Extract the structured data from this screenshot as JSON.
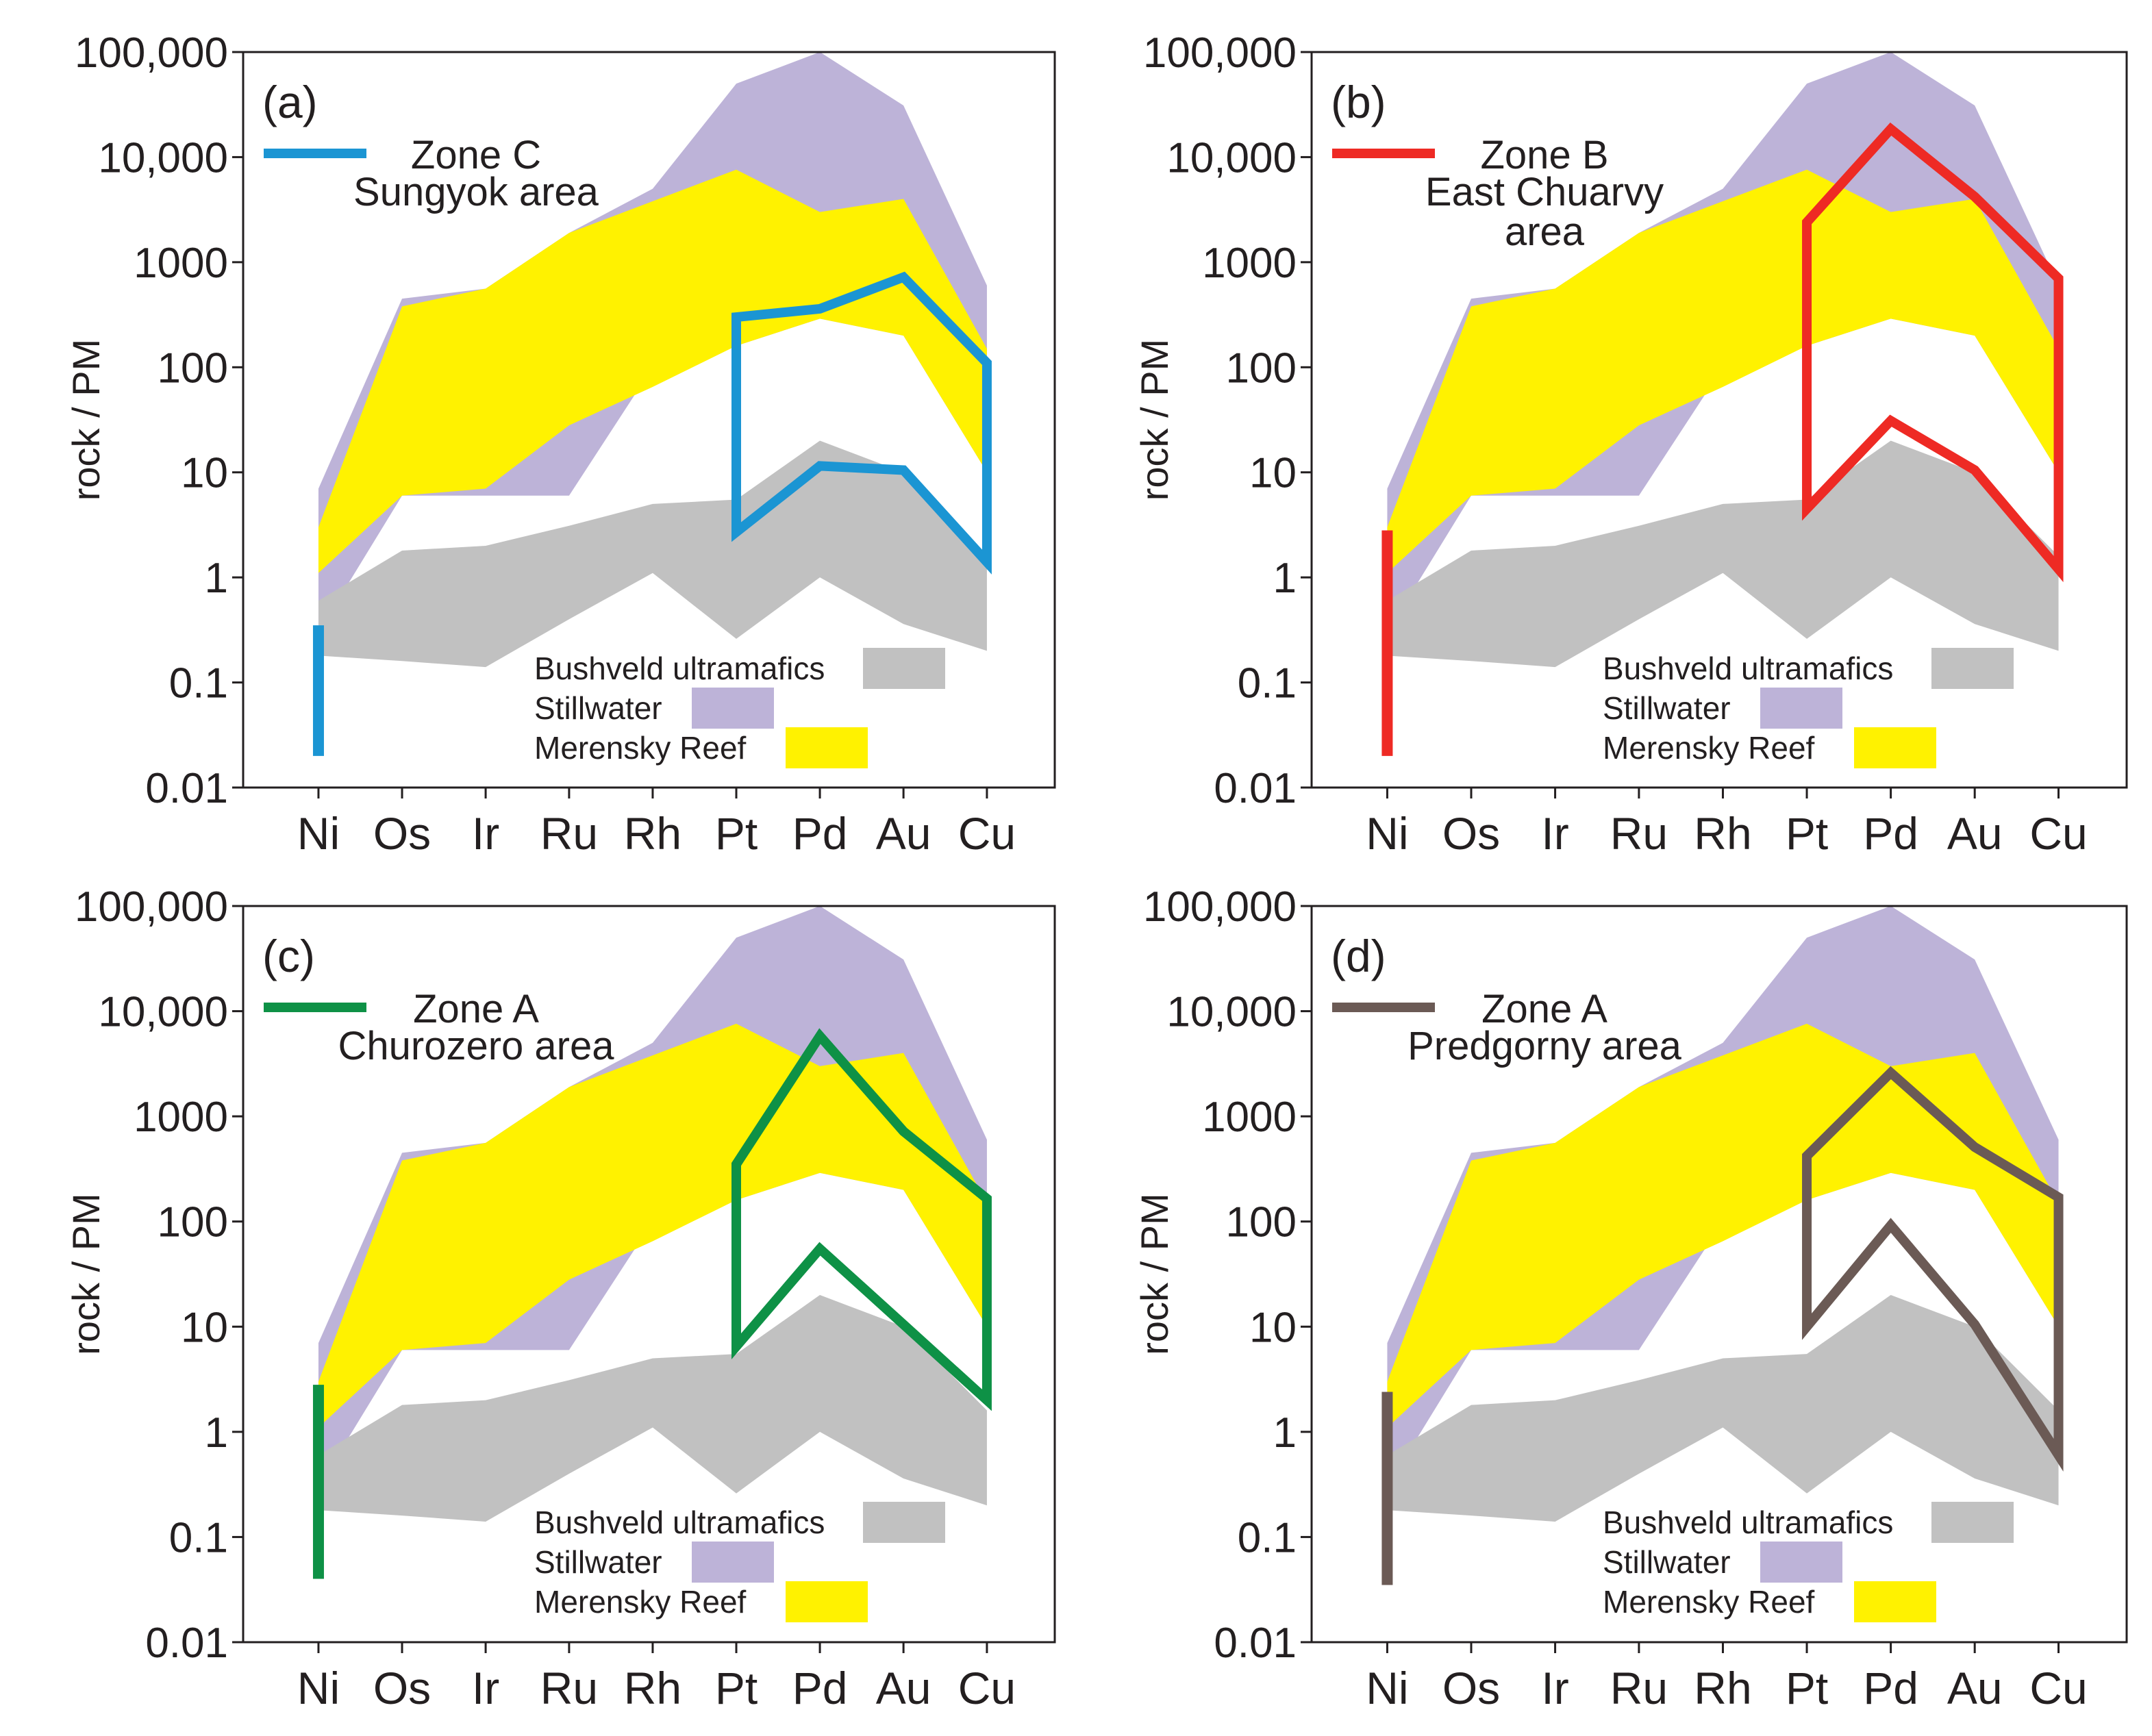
{
  "chart_data": [
    {
      "type": "line",
      "panel_label": "(a)",
      "title": "",
      "xlabel": "",
      "ylabel": "rock / PM",
      "yscale": "log",
      "ylim": [
        0.01,
        100000
      ],
      "yticks": [
        0.01,
        0.1,
        1,
        10,
        100,
        1000,
        10000,
        100000
      ],
      "ytick_labels": [
        "0.01",
        "0.1",
        "1",
        "10",
        "100",
        "1000",
        "10,000",
        "100,000"
      ],
      "categories": [
        "Ni",
        "Os",
        "Ir",
        "Ru",
        "Rh",
        "Pt",
        "Pd",
        "Au",
        "Cu"
      ],
      "zone": {
        "name": "Zone C",
        "area": "Sungyok area",
        "color": "#1b95d3",
        "ni_range": [
          0.02,
          0.35
        ],
        "upper": {
          "Pt": 300,
          "Pd": 360,
          "Au": 720,
          "Cu": 110
        },
        "lower": {
          "Pt": 2.7,
          "Pd": 11.5,
          "Au": 10.5,
          "Cu": 1.4
        }
      },
      "bands_legend": [
        "Bushveld ultramafics",
        "Stillwater",
        "Merensky Reef"
      ]
    },
    {
      "type": "line",
      "panel_label": "(b)",
      "title": "",
      "xlabel": "",
      "ylabel": "rock / PM",
      "yscale": "log",
      "ylim": [
        0.01,
        100000
      ],
      "yticks": [
        0.01,
        0.1,
        1,
        10,
        100,
        1000,
        10000,
        100000
      ],
      "ytick_labels": [
        "0.01",
        "0.1",
        "1",
        "10",
        "100",
        "1000",
        "10,000",
        "100,000"
      ],
      "categories": [
        "Ni",
        "Os",
        "Ir",
        "Ru",
        "Rh",
        "Pt",
        "Pd",
        "Au",
        "Cu"
      ],
      "zone": {
        "name": "Zone B",
        "area": "East Chuarvy area",
        "area_lines": [
          "East Chuarvy",
          "area"
        ],
        "color": "#ee2a24",
        "ni_range": [
          0.02,
          2.8
        ],
        "upper": {
          "Pt": 2400,
          "Pd": 18500,
          "Au": 4200,
          "Cu": 700
        },
        "lower": {
          "Pt": 4.5,
          "Pd": 31,
          "Au": 10.5,
          "Cu": 1.2
        }
      },
      "bands_legend": [
        "Bushveld ultramafics",
        "Stillwater",
        "Merensky Reef"
      ]
    },
    {
      "type": "line",
      "panel_label": "(c)",
      "title": "",
      "xlabel": "",
      "ylabel": "rock / PM",
      "yscale": "log",
      "ylim": [
        0.01,
        100000
      ],
      "yticks": [
        0.01,
        0.1,
        1,
        10,
        100,
        1000,
        10000,
        100000
      ],
      "ytick_labels": [
        "0.01",
        "0.1",
        "1",
        "10",
        "100",
        "1000",
        "10,000",
        "100,000"
      ],
      "categories": [
        "Ni",
        "Os",
        "Ir",
        "Ru",
        "Rh",
        "Pt",
        "Pd",
        "Au",
        "Cu"
      ],
      "zone": {
        "name": "Zone A",
        "area": "Churozero area",
        "color": "#0e9146",
        "ni_range": [
          0.04,
          2.8
        ],
        "upper": {
          "Pt": 350,
          "Pd": 5800,
          "Au": 720,
          "Cu": 165
        },
        "lower": {
          "Pt": 6.5,
          "Pd": 55,
          "Au": 10.5,
          "Cu": 2
        }
      },
      "bands_legend": [
        "Bushveld ultramafics",
        "Stillwater",
        "Merensky Reef"
      ]
    },
    {
      "type": "line",
      "panel_label": "(d)",
      "title": "",
      "xlabel": "",
      "ylabel": "rock / PM",
      "yscale": "log",
      "ylim": [
        0.01,
        100000
      ],
      "yticks": [
        0.01,
        0.1,
        1,
        10,
        100,
        1000,
        10000,
        100000
      ],
      "ytick_labels": [
        "0.01",
        "0.1",
        "1",
        "10",
        "100",
        "1000",
        "10,000",
        "100,000"
      ],
      "categories": [
        "Ni",
        "Os",
        "Ir",
        "Ru",
        "Rh",
        "Pt",
        "Pd",
        "Au",
        "Cu"
      ],
      "zone": {
        "name": "Zone A",
        "area": "Predgorny area",
        "color": "#6b5a55",
        "ni_range": [
          0.035,
          2.4
        ],
        "upper": {
          "Pt": 420,
          "Pd": 2600,
          "Au": 510,
          "Cu": 170
        },
        "lower": {
          "Pt": 10,
          "Pd": 92,
          "Au": 10.5,
          "Cu": 0.6
        }
      },
      "bands_legend": [
        "Bushveld ultramafics",
        "Stillwater",
        "Merensky Reef"
      ]
    }
  ],
  "reference_bands": {
    "note": "shared across all four panels",
    "stillwater": {
      "label": "Stillwater",
      "color": "#bdb3d8",
      "max": {
        "Ni": 7,
        "Os": 450,
        "Ir": 560,
        "Ru": 1900,
        "Rh": 5000,
        "Pt": 50000,
        "Pd": 100000,
        "Au": 31000,
        "Cu": 600
      },
      "min": {
        "Ni": 0.3,
        "Os": 6,
        "Ir": 6,
        "Ru": 6,
        "Rh": 100,
        "Pt": 160,
        "Pd": 290,
        "Au": 200,
        "Cu": 10
      }
    },
    "merensky": {
      "label": "Merensky Reef",
      "color": "#fff200",
      "max": {
        "Ni": 3,
        "Os": 380,
        "Ir": 560,
        "Ru": 1900,
        "Rh": 3800,
        "Pt": 7600,
        "Pd": 3000,
        "Au": 4000,
        "Cu": 150
      },
      "min": {
        "Ni": 1.1,
        "Os": 6,
        "Ir": 7,
        "Ru": 28,
        "Rh": 65,
        "Pt": 160,
        "Pd": 290,
        "Au": 200,
        "Cu": 10
      }
    },
    "bushveld": {
      "label": "Bushveld ultramafics",
      "color": "#c1c1c1",
      "max": {
        "Ni": 0.6,
        "Os": 1.8,
        "Ir": 2,
        "Ru": 3.1,
        "Rh": 5,
        "Pt": 5.5,
        "Pd": 20,
        "Au": 10,
        "Cu": 1.6
      },
      "min": {
        "Ni": 0.18,
        "Os": 0.16,
        "Ir": 0.14,
        "Ru": 0.4,
        "Rh": 1.1,
        "Pt": 0.26,
        "Pd": 1,
        "Au": 0.36,
        "Cu": 0.2
      }
    }
  }
}
